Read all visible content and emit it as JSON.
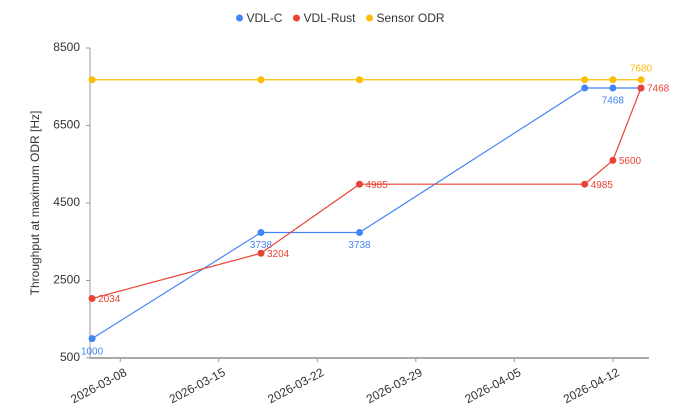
{
  "chart_data": {
    "type": "line",
    "y_label": "Throughput at maximum ODR [Hz]",
    "x": [
      "2026-03-06",
      "2026-03-18",
      "2026-03-25",
      "2026-04-10",
      "2026-04-12",
      "2026-04-14"
    ],
    "xlim": [
      "2026-03-05",
      "2026-04-14"
    ],
    "xticks": [
      "2026-03-08",
      "2026-03-15",
      "2026-03-22",
      "2026-03-29",
      "2026-04-05",
      "2026-04-12"
    ],
    "ylim": [
      500,
      8500
    ],
    "yticks": [
      500,
      2500,
      4500,
      6500,
      8500
    ],
    "legend": "top",
    "series": [
      {
        "name": "VDL-C",
        "color": "#4285f4",
        "values": [
          1000,
          3738,
          3738,
          7468,
          7468,
          7468
        ],
        "show_labels": [
          true,
          true,
          true,
          false,
          true,
          false
        ],
        "label_position": "below"
      },
      {
        "name": "VDL-Rust",
        "color": "#ea4335",
        "values": [
          2034,
          3204,
          4985,
          4985,
          5600,
          7468
        ],
        "show_labels": [
          true,
          true,
          true,
          true,
          true,
          true
        ],
        "label_position": "right"
      },
      {
        "name": "Sensor ODR",
        "color": "#fbbc04",
        "values": [
          7680,
          7680,
          7680,
          7680,
          7680,
          7680
        ],
        "show_labels": [
          false,
          false,
          false,
          false,
          false,
          true
        ],
        "label_position": "above"
      }
    ]
  }
}
